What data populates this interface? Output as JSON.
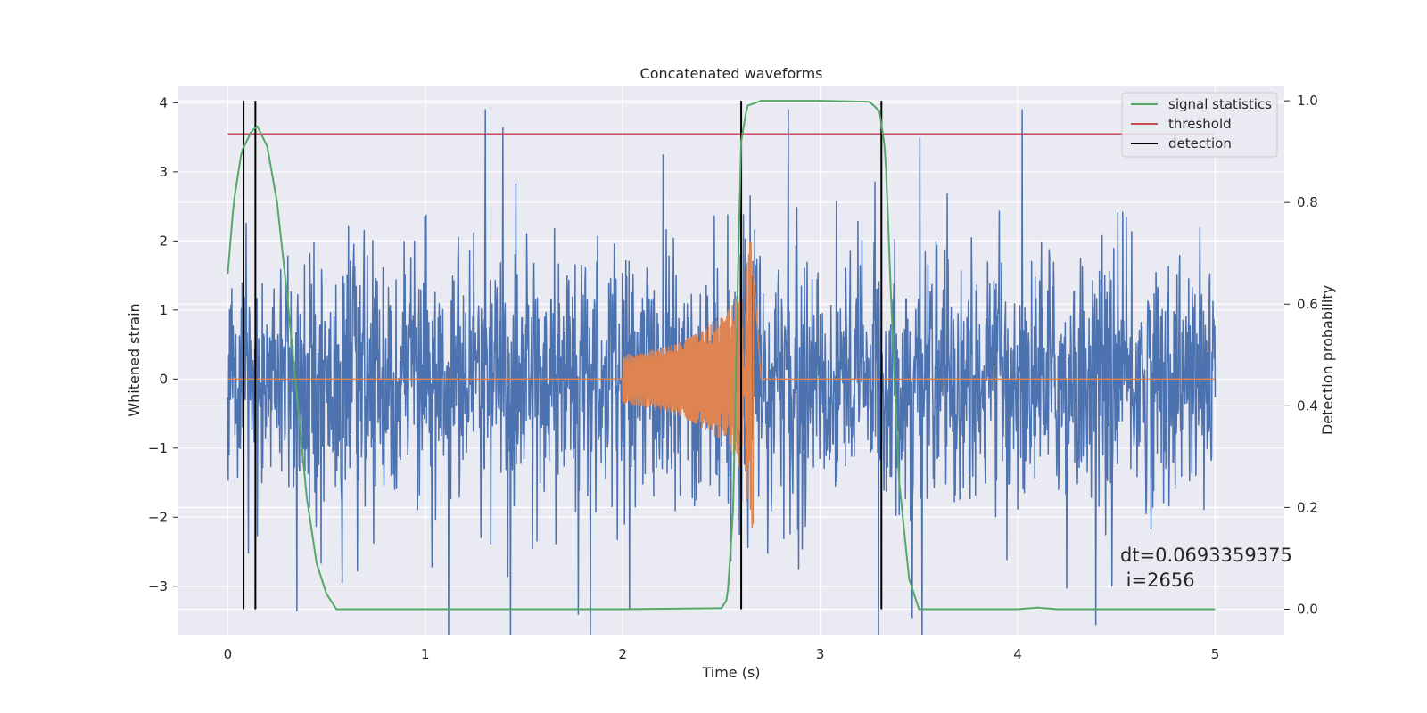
{
  "chart_data": {
    "type": "line",
    "title": "Concatenated waveforms",
    "xlabel": "Time (s)",
    "ylabel": "Whitened strain",
    "y2label": "Detection probability",
    "xlim": [
      -0.25,
      5.35
    ],
    "ylim": [
      -3.7,
      4.25
    ],
    "y2lim": [
      -0.05,
      1.03
    ],
    "xticks": [
      0,
      1,
      2,
      3,
      4,
      5
    ],
    "xtick_labels": [
      "0",
      "1",
      "2",
      "3",
      "4",
      "5"
    ],
    "yticks": [
      -3,
      -2,
      -1,
      0,
      1,
      2,
      3,
      4
    ],
    "ytick_labels": [
      "−3",
      "−2",
      "−1",
      "0",
      "1",
      "2",
      "3",
      "4"
    ],
    "y2ticks": [
      0.0,
      0.2,
      0.4,
      0.6,
      0.8,
      1.0
    ],
    "y2tick_labels": [
      "0.0",
      "0.2",
      "0.4",
      "0.6",
      "0.8",
      "1.0"
    ],
    "grid": true,
    "legend_position": "top-right",
    "legend": [
      "signal statistics",
      "threshold",
      "detection"
    ],
    "colors": {
      "strain": "#4c72b0",
      "injected": "#dd8452",
      "signal": "#55a868",
      "threshold": "#c44e52",
      "detection": "#000000",
      "background": "#eaeaf2",
      "grid": "#ffffff"
    },
    "series": [
      {
        "name": "whitened strain",
        "axis": "left",
        "x_start": 0,
        "x_end": 5,
        "typical_amplitude": 1.2,
        "max_peak": 3.9
      },
      {
        "name": "injected waveform",
        "axis": "left",
        "x": [
          0,
          2.0,
          2.1,
          2.2,
          2.3,
          2.4,
          2.5,
          2.55,
          2.6,
          2.63,
          2.66,
          2.7,
          5.0
        ],
        "envelope": [
          0,
          0.35,
          0.4,
          0.45,
          0.55,
          0.7,
          0.9,
          1.05,
          1.35,
          1.8,
          2.25,
          0.03,
          0
        ],
        "cutoff": 2.66
      },
      {
        "name": "signal statistics",
        "axis": "right",
        "x": [
          0,
          0.03,
          0.07,
          0.12,
          0.15,
          0.2,
          0.25,
          0.3,
          0.35,
          0.4,
          0.45,
          0.5,
          0.55,
          1.0,
          2.0,
          2.5,
          2.53,
          2.56,
          2.58,
          2.6,
          2.63,
          2.7,
          3.0,
          3.25,
          3.3,
          3.33,
          3.36,
          3.4,
          3.45,
          3.5,
          4.0,
          4.1,
          4.2,
          5.0
        ],
        "values": [
          0.66,
          0.8,
          0.9,
          0.94,
          0.95,
          0.91,
          0.8,
          0.62,
          0.42,
          0.22,
          0.09,
          0.03,
          0.0,
          0.0,
          0.0,
          0.002,
          0.02,
          0.2,
          0.6,
          0.92,
          0.99,
          1.0,
          1.0,
          0.998,
          0.98,
          0.9,
          0.6,
          0.25,
          0.06,
          0.0,
          0.0,
          0.003,
          0.0,
          0.0
        ]
      },
      {
        "name": "threshold",
        "axis": "left",
        "x": [
          0,
          5
        ],
        "values": [
          3.55,
          3.55
        ]
      },
      {
        "name": "detection",
        "axis": "right",
        "x": [
          0.08,
          0.14,
          2.6,
          3.31
        ],
        "y_range": [
          0,
          1.0
        ]
      }
    ],
    "annotation": {
      "line1": "dt=0.0693359375",
      "line2": " i=2656",
      "x": 4.5,
      "y": -2.5
    }
  }
}
